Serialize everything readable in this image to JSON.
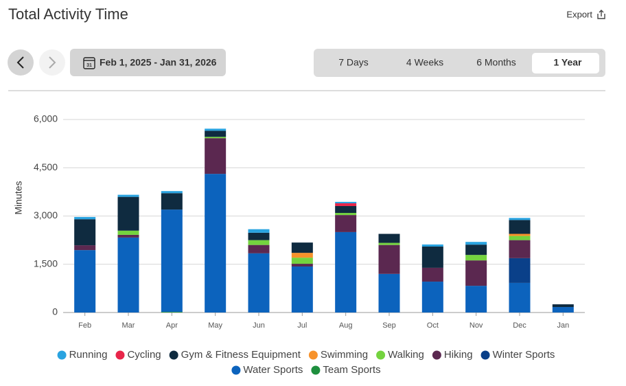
{
  "header": {
    "title": "Total Activity Time",
    "export": "Export"
  },
  "date_range": {
    "calendar_day": "31",
    "label": "Feb 1, 2025 - Jan 31, 2026"
  },
  "periods": {
    "options": [
      "7 Days",
      "4 Weeks",
      "6 Months",
      "1 Year"
    ],
    "selected": 3
  },
  "chart_data": {
    "type": "stacked-bar",
    "y_label": "Minutes",
    "categories": [
      "Feb",
      "Mar",
      "Apr",
      "May",
      "Jun",
      "Jul",
      "Aug",
      "Sep",
      "Oct",
      "Nov",
      "Dec",
      "Jan"
    ],
    "series": [
      {
        "name": "Running",
        "color": "#29a3e0",
        "values": [
          70,
          65,
          65,
          65,
          110,
          0,
          45,
          0,
          65,
          85,
          65,
          0
        ]
      },
      {
        "name": "Cycling",
        "color": "#e8264a",
        "values": [
          0,
          0,
          0,
          0,
          0,
          0,
          85,
          0,
          0,
          0,
          0,
          0
        ]
      },
      {
        "name": "Gym & Fitness Equipment",
        "color": "#0f2b40",
        "values": [
          810,
          1050,
          510,
          190,
          230,
          320,
          215,
          280,
          660,
          320,
          430,
          85
        ]
      },
      {
        "name": "Swimming",
        "color": "#f7922b",
        "values": [
          0,
          0,
          0,
          0,
          0,
          150,
          0,
          0,
          0,
          0,
          65,
          0
        ]
      },
      {
        "name": "Walking",
        "color": "#74d33f",
        "values": [
          0,
          130,
          0,
          40,
          150,
          190,
          65,
          65,
          0,
          170,
          130,
          0
        ]
      },
      {
        "name": "Hiking",
        "color": "#5b2850",
        "values": [
          150,
          85,
          0,
          1110,
          260,
          85,
          530,
          900,
          430,
          790,
          560,
          0
        ]
      },
      {
        "name": "Winter Sports",
        "color": "#0a4089",
        "values": [
          0,
          0,
          0,
          0,
          0,
          0,
          0,
          0,
          0,
          0,
          770,
          0
        ]
      },
      {
        "name": "Water Sports",
        "color": "#0c63bd",
        "values": [
          1940,
          2330,
          3180,
          4310,
          1840,
          1430,
          2500,
          1200,
          960,
          830,
          920,
          170
        ]
      },
      {
        "name": "Team Sports",
        "color": "#1e8f3e",
        "values": [
          0,
          0,
          20,
          0,
          0,
          0,
          0,
          0,
          0,
          0,
          0,
          0
        ]
      }
    ],
    "ylim": [
      0,
      6000
    ],
    "yticks": [
      0,
      {
        "value": 1500,
        "label": "1,500"
      },
      {
        "value": 3000,
        "label": "3,000"
      },
      {
        "value": 4500,
        "label": "4,500"
      },
      {
        "value": 6000,
        "label": "6,000"
      }
    ],
    "grid": true
  }
}
